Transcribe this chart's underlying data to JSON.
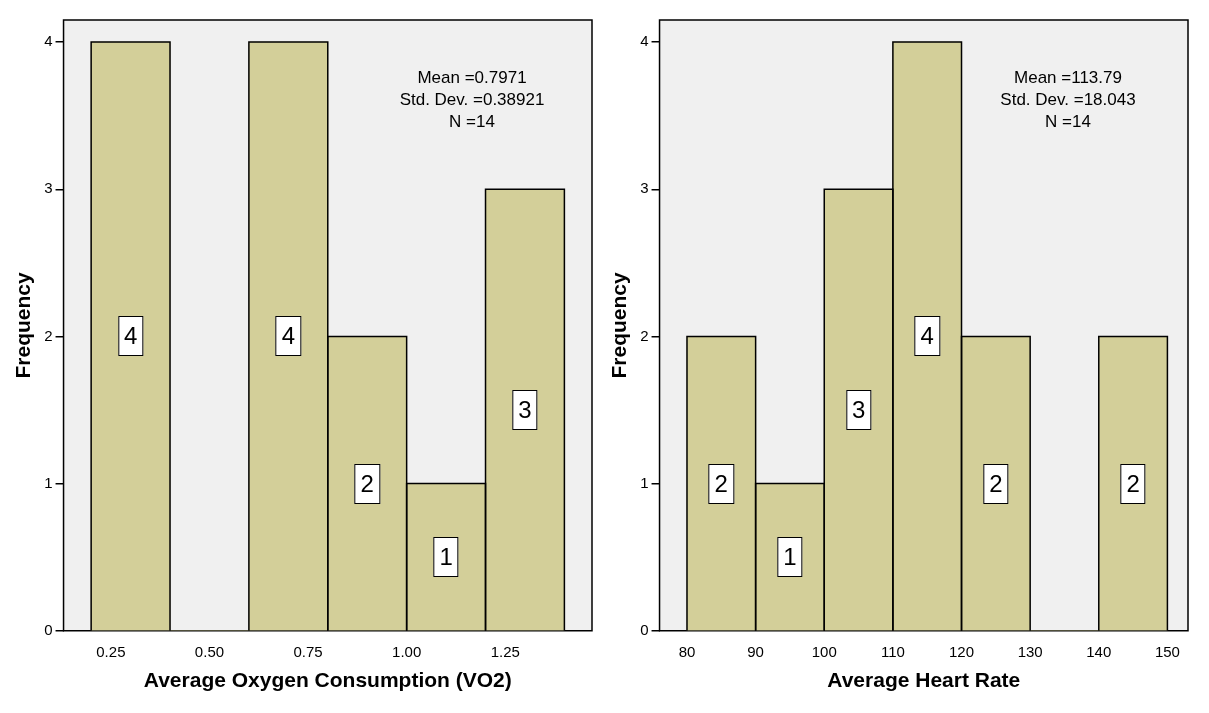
{
  "chart_data": [
    {
      "type": "histogram",
      "xlabel": "Average Oxygen Consumption (VO2)",
      "ylabel": "Frequency",
      "bins": [
        0.2,
        0.4,
        0.6,
        0.8,
        1.0,
        1.2,
        1.4
      ],
      "values": [
        4,
        0,
        4,
        2,
        1,
        3
      ],
      "value_labels": [
        "4",
        null,
        "4",
        "2",
        "1",
        "3"
      ],
      "color": "#d3cf99",
      "xlim": [
        0.13,
        1.47
      ],
      "xticks": [
        {
          "value": 0.25,
          "label": "0.25"
        },
        {
          "value": 0.5,
          "label": "0.50"
        },
        {
          "value": 0.75,
          "label": "0.75"
        },
        {
          "value": 1,
          "label": "1.00"
        },
        {
          "value": 1.25,
          "label": "1.25"
        }
      ],
      "ylim": [
        0,
        4.15
      ],
      "yticks": [
        0,
        1,
        2,
        3,
        4
      ],
      "grid": false,
      "legend": false,
      "annotations": [
        "Mean =0.7971",
        "Std. Dev. =0.38921",
        "N =14"
      ]
    },
    {
      "type": "histogram",
      "xlabel": "Average Heart Rate",
      "ylabel": "Frequency",
      "bins": [
        80,
        90,
        100,
        110,
        120,
        130,
        140,
        150
      ],
      "values": [
        2,
        1,
        3,
        4,
        2,
        0,
        2
      ],
      "value_labels": [
        "2",
        "1",
        "3",
        "4",
        "2",
        null,
        "2"
      ],
      "color": "#d3cf99",
      "xlim": [
        76,
        153
      ],
      "xticks": [
        80,
        90,
        100,
        110,
        120,
        130,
        140,
        150
      ],
      "ylim": [
        0,
        4.15
      ],
      "yticks": [
        0,
        1,
        2,
        3,
        4
      ],
      "grid": false,
      "legend": false,
      "annotations": [
        "Mean =113.79",
        "Std. Dev. =18.043",
        "N =14"
      ]
    }
  ]
}
